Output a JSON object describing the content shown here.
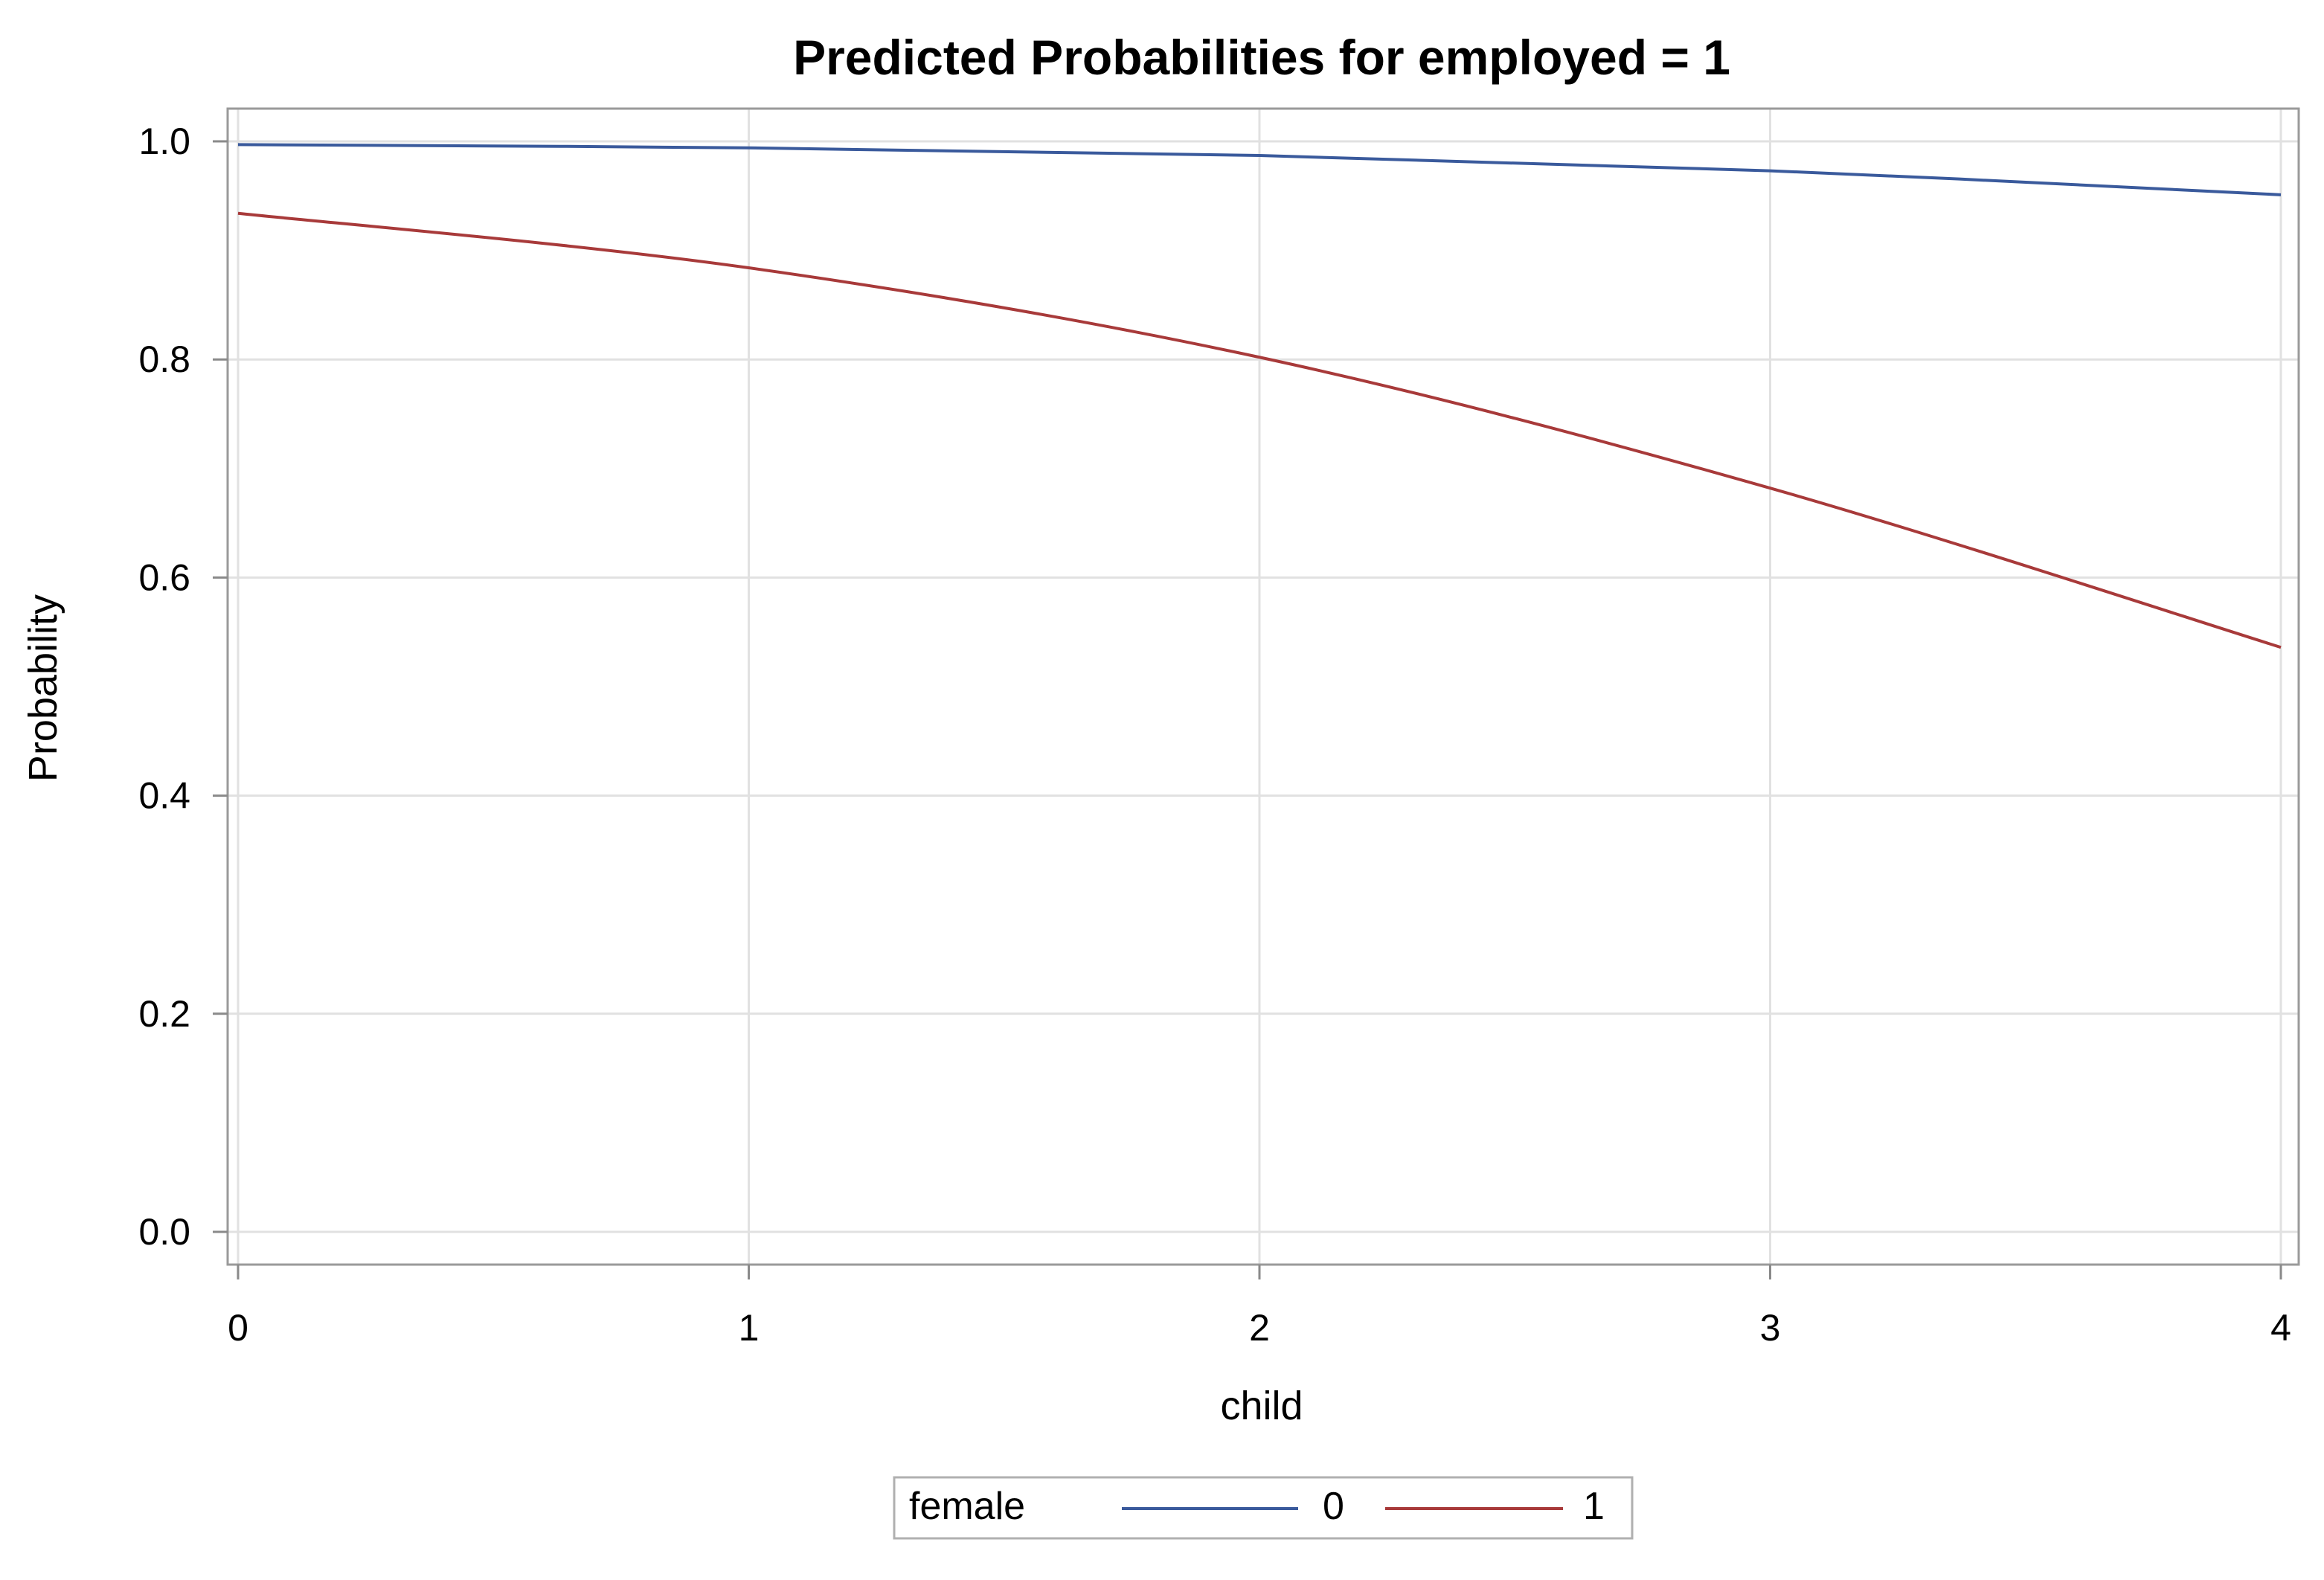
{
  "chart_data": {
    "type": "line",
    "title": "Predicted Probabilities for employed = 1",
    "xlabel": "child",
    "ylabel": "Probability",
    "x": [
      0,
      1,
      2,
      3,
      4
    ],
    "x_ticks": [
      "0",
      "1",
      "2",
      "3",
      "4"
    ],
    "y_ticks": [
      "0.0",
      "0.2",
      "0.4",
      "0.6",
      "0.8",
      "1.0"
    ],
    "xlim": [
      0,
      4
    ],
    "ylim": [
      -0.03,
      1.03
    ],
    "grid": true,
    "legend": {
      "title": "female",
      "placement": "bottom-center"
    },
    "series": [
      {
        "name": "0",
        "color": "#3A5A9C",
        "values": [
          0.997,
          0.994,
          0.987,
          0.973,
          0.951
        ]
      },
      {
        "name": "1",
        "color": "#A83A3A",
        "values": [
          0.934,
          0.884,
          0.802,
          0.682,
          0.536
        ]
      }
    ]
  }
}
